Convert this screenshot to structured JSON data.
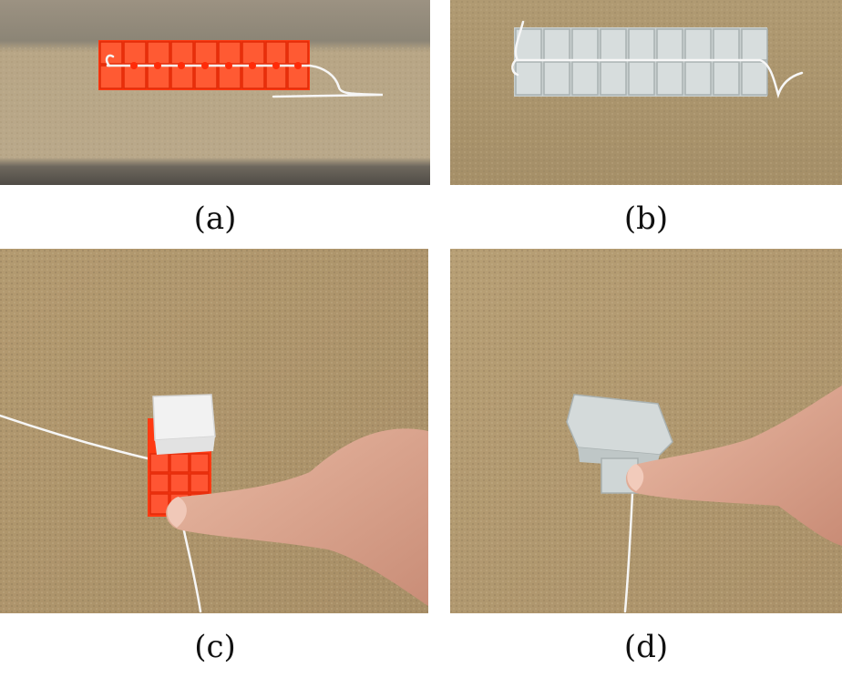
{
  "figure": {
    "panels": [
      {
        "label": "(a)",
        "description_icon": "red-folding-strip-photo"
      },
      {
        "label": "(b)",
        "description_icon": "white-folding-strip-photo"
      },
      {
        "label": "(c)",
        "description_icon": "red-folded-cube-finger-photo"
      },
      {
        "label": "(d)",
        "description_icon": "white-folded-cube-finger-photo"
      }
    ]
  },
  "colors": {
    "red_tile": "#ff3a12",
    "white_tile": "#cfd6d6",
    "cork": "#b79a6e",
    "skin": "#e0a891",
    "string": "#f4f4f4"
  }
}
